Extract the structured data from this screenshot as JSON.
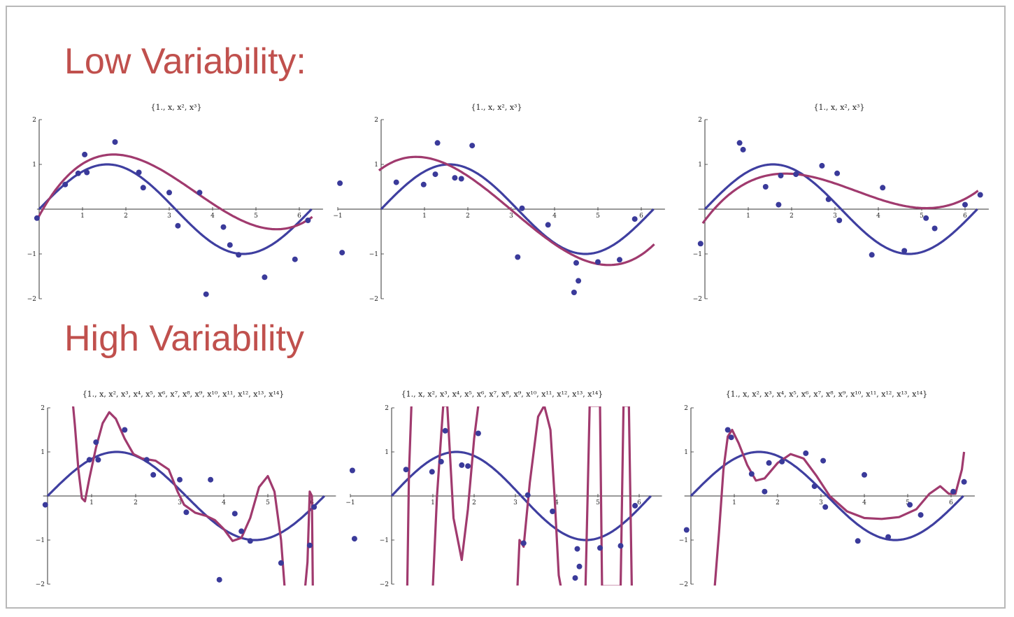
{
  "headings": {
    "low": "Low Variability:",
    "high": "High Variability"
  },
  "colors": {
    "heading": "#c0504d",
    "true_curve": "#3f3fa0",
    "fitted_curve": "#a03a6e",
    "points": "#3a3a9a"
  },
  "chart_data": [
    {
      "type": "scatter",
      "title": "{1., x, x², x³}",
      "xticks": [
        1,
        2,
        3,
        4,
        5,
        6
      ],
      "yticks": [
        -2,
        -1,
        1,
        2
      ],
      "ylim": [
        -2,
        2
      ],
      "points": [
        [
          -0.05,
          -0.2
        ],
        [
          0.6,
          0.55
        ],
        [
          0.9,
          0.8
        ],
        [
          1.05,
          1.22
        ],
        [
          1.1,
          0.82
        ],
        [
          1.75,
          1.5
        ],
        [
          2.3,
          0.82
        ],
        [
          2.4,
          0.48
        ],
        [
          3.0,
          0.37
        ],
        [
          3.2,
          -0.37
        ],
        [
          3.7,
          0.37
        ],
        [
          3.85,
          -1.9
        ],
        [
          4.25,
          -0.4
        ],
        [
          4.4,
          -0.8
        ],
        [
          4.6,
          -1.02
        ],
        [
          5.2,
          -1.52
        ],
        [
          5.9,
          -1.12
        ],
        [
          6.2,
          -0.25
        ]
      ],
      "fit_coeffs": [
        -0.15,
        1.78,
        -0.68,
        0.063
      ]
    },
    {
      "type": "scatter",
      "title": "{1., x, x², x³}",
      "xticks": [
        -1,
        1,
        2,
        3,
        4,
        5,
        6
      ],
      "yticks": [
        -2,
        -1,
        1,
        2
      ],
      "ylim": [
        -2,
        2
      ],
      "points": [
        [
          -0.95,
          0.58
        ],
        [
          -0.9,
          -0.97
        ],
        [
          0.35,
          0.6
        ],
        [
          0.98,
          0.55
        ],
        [
          1.25,
          0.78
        ],
        [
          1.3,
          1.48
        ],
        [
          1.7,
          0.7
        ],
        [
          1.85,
          0.68
        ],
        [
          2.1,
          1.42
        ],
        [
          3.15,
          -1.07
        ],
        [
          3.25,
          0.02
        ],
        [
          3.85,
          -0.35
        ],
        [
          4.45,
          -1.86
        ],
        [
          4.5,
          -1.2
        ],
        [
          4.55,
          -1.6
        ],
        [
          5.0,
          -1.18
        ],
        [
          5.5,
          -1.13
        ],
        [
          5.85,
          -0.22
        ]
      ],
      "fit_coeffs": [
        0.9,
        0.7,
        -0.5,
        0.055
      ]
    },
    {
      "type": "scatter",
      "title": "{1., x, x², x³}",
      "xticks": [
        1,
        2,
        3,
        4,
        5,
        6
      ],
      "yticks": [
        -2,
        -1,
        1,
        2
      ],
      "ylim": [
        -2,
        2
      ],
      "points": [
        [
          -0.1,
          -0.77
        ],
        [
          0.8,
          1.48
        ],
        [
          0.88,
          1.33
        ],
        [
          1.4,
          0.5
        ],
        [
          1.7,
          0.1
        ],
        [
          1.75,
          0.75
        ],
        [
          2.1,
          0.78
        ],
        [
          2.7,
          0.97
        ],
        [
          2.85,
          0.22
        ],
        [
          3.05,
          0.8
        ],
        [
          3.1,
          -0.25
        ],
        [
          3.85,
          -1.02
        ],
        [
          4.1,
          0.48
        ],
        [
          4.6,
          -0.93
        ],
        [
          5.1,
          -0.2
        ],
        [
          5.3,
          -0.43
        ],
        [
          6.0,
          0.1
        ],
        [
          6.35,
          0.32
        ]
      ],
      "fit_coeffs": [
        -0.25,
        1.28,
        -0.47,
        0.045
      ]
    },
    {
      "type": "scatter",
      "title": "{1., x, x², x³, x⁴, x⁵, x⁶, x⁷, x⁸, x⁹, x¹⁰, x¹¹, x¹², x¹³, x¹⁴}",
      "xticks": [
        1,
        2,
        3,
        4,
        5,
        6
      ],
      "yticks": [
        -2,
        -1,
        1,
        2
      ],
      "ylim": [
        -2,
        2
      ],
      "points": [
        [
          -0.05,
          -0.2
        ],
        [
          0.95,
          0.82
        ],
        [
          1.1,
          1.22
        ],
        [
          1.15,
          0.82
        ],
        [
          1.75,
          1.5
        ],
        [
          2.25,
          0.82
        ],
        [
          2.4,
          0.48
        ],
        [
          3.0,
          0.37
        ],
        [
          3.15,
          -0.37
        ],
        [
          3.7,
          0.37
        ],
        [
          3.9,
          -1.9
        ],
        [
          4.25,
          -0.4
        ],
        [
          4.4,
          -0.8
        ],
        [
          4.6,
          -1.02
        ],
        [
          5.3,
          -1.52
        ],
        [
          5.95,
          -1.12
        ],
        [
          6.05,
          -0.25
        ]
      ],
      "fit_path": [
        [
          0.58,
          2.05
        ],
        [
          0.62,
          1.6
        ],
        [
          0.7,
          0.6
        ],
        [
          0.78,
          -0.05
        ],
        [
          0.85,
          -0.12
        ],
        [
          0.95,
          0.4
        ],
        [
          1.1,
          1.1
        ],
        [
          1.25,
          1.65
        ],
        [
          1.4,
          1.9
        ],
        [
          1.55,
          1.75
        ],
        [
          1.75,
          1.3
        ],
        [
          1.95,
          0.95
        ],
        [
          2.15,
          0.85
        ],
        [
          2.45,
          0.8
        ],
        [
          2.75,
          0.6
        ],
        [
          2.95,
          0.1
        ],
        [
          3.1,
          -0.2
        ],
        [
          3.35,
          -0.38
        ],
        [
          3.6,
          -0.45
        ],
        [
          3.8,
          -0.55
        ],
        [
          4.0,
          -0.75
        ],
        [
          4.2,
          -1.02
        ],
        [
          4.4,
          -0.95
        ],
        [
          4.6,
          -0.5
        ],
        [
          4.8,
          0.2
        ],
        [
          5.0,
          0.45
        ],
        [
          5.15,
          0.1
        ],
        [
          5.3,
          -1.0
        ],
        [
          5.38,
          -2.05
        ]
      ],
      "fit_path2": [
        [
          5.85,
          -2.05
        ],
        [
          5.9,
          -1.5
        ],
        [
          5.95,
          0.1
        ],
        [
          6.0,
          0.0
        ],
        [
          6.02,
          -2.05
        ]
      ]
    },
    {
      "type": "scatter",
      "title": "{1., x, x², x³, x⁴, x⁵, x⁶, x⁷, x⁸, x⁹, x¹⁰, x¹¹, x¹², x¹³, x¹⁴}",
      "xticks": [
        -1,
        1,
        2,
        3,
        4,
        5,
        6
      ],
      "yticks": [
        -2,
        -1,
        1,
        2
      ],
      "ylim": [
        -2,
        2
      ],
      "points": [
        [
          -0.95,
          0.58
        ],
        [
          -0.9,
          -0.97
        ],
        [
          0.35,
          0.6
        ],
        [
          0.98,
          0.55
        ],
        [
          1.2,
          0.78
        ],
        [
          1.3,
          1.48
        ],
        [
          1.7,
          0.7
        ],
        [
          1.85,
          0.68
        ],
        [
          2.1,
          1.42
        ],
        [
          3.2,
          -1.07
        ],
        [
          3.3,
          0.02
        ],
        [
          3.9,
          -0.35
        ],
        [
          4.45,
          -1.86
        ],
        [
          4.5,
          -1.2
        ],
        [
          4.55,
          -1.6
        ],
        [
          5.05,
          -1.18
        ],
        [
          5.55,
          -1.13
        ],
        [
          5.9,
          -0.22
        ]
      ],
      "fit_path": [
        [
          0.38,
          -2.05
        ],
        [
          0.42,
          0.5
        ],
        [
          0.48,
          2.05
        ]
      ],
      "fit_path2": [
        [
          1.0,
          -2.05
        ],
        [
          1.1,
          0.0
        ],
        [
          1.25,
          2.05
        ],
        [
          1.35,
          2.05
        ],
        [
          1.5,
          -0.5
        ],
        [
          1.7,
          -1.45
        ],
        [
          1.85,
          -0.3
        ],
        [
          2.0,
          1.3
        ],
        [
          2.1,
          2.05
        ]
      ],
      "fit_path3": [
        [
          3.05,
          -2.05
        ],
        [
          3.1,
          -1.0
        ],
        [
          3.2,
          -1.15
        ],
        [
          3.35,
          0.3
        ],
        [
          3.55,
          1.8
        ],
        [
          3.7,
          2.05
        ],
        [
          3.85,
          1.5
        ],
        [
          3.95,
          0.0
        ],
        [
          4.05,
          -1.8
        ],
        [
          4.1,
          -2.05
        ]
      ],
      "fit_path4": [
        [
          4.7,
          -2.05
        ],
        [
          4.75,
          0.0
        ],
        [
          4.8,
          2.05
        ],
        [
          5.05,
          2.05
        ],
        [
          5.1,
          -2.05
        ],
        [
          5.55,
          -2.05
        ],
        [
          5.62,
          2.05
        ],
        [
          5.75,
          2.05
        ],
        [
          5.82,
          -2.05
        ]
      ]
    },
    {
      "type": "scatter",
      "title": "{1., x, x², x³, x⁴, x⁵, x⁶, x⁷, x⁸, x⁹, x¹⁰, x¹¹, x¹², x¹³, x¹⁴}",
      "xticks": [
        1,
        2,
        3,
        4,
        5,
        6
      ],
      "yticks": [
        -2,
        -1,
        1,
        2
      ],
      "ylim": [
        -2,
        2
      ],
      "points": [
        [
          -0.1,
          -0.77
        ],
        [
          0.85,
          1.5
        ],
        [
          0.93,
          1.33
        ],
        [
          1.4,
          0.5
        ],
        [
          1.7,
          0.1
        ],
        [
          1.8,
          0.75
        ],
        [
          2.1,
          0.78
        ],
        [
          2.65,
          0.97
        ],
        [
          2.85,
          0.22
        ],
        [
          3.05,
          0.8
        ],
        [
          3.1,
          -0.25
        ],
        [
          3.85,
          -1.02
        ],
        [
          4.0,
          0.48
        ],
        [
          4.55,
          -0.93
        ],
        [
          5.05,
          -0.2
        ],
        [
          5.3,
          -0.43
        ],
        [
          6.05,
          0.1
        ],
        [
          6.3,
          0.32
        ]
      ],
      "fit_path": [
        [
          0.55,
          -2.05
        ],
        [
          0.65,
          -0.8
        ],
        [
          0.75,
          0.6
        ],
        [
          0.85,
          1.35
        ],
        [
          0.95,
          1.5
        ],
        [
          1.1,
          1.2
        ],
        [
          1.3,
          0.7
        ],
        [
          1.5,
          0.35
        ],
        [
          1.7,
          0.4
        ],
        [
          2.0,
          0.75
        ],
        [
          2.3,
          0.95
        ],
        [
          2.6,
          0.85
        ],
        [
          2.9,
          0.45
        ],
        [
          3.2,
          0.0
        ],
        [
          3.6,
          -0.35
        ],
        [
          4.0,
          -0.5
        ],
        [
          4.4,
          -0.52
        ],
        [
          4.8,
          -0.48
        ],
        [
          5.2,
          -0.3
        ],
        [
          5.5,
          0.05
        ],
        [
          5.75,
          0.22
        ],
        [
          5.95,
          0.05
        ],
        [
          6.1,
          0.05
        ],
        [
          6.25,
          0.6
        ],
        [
          6.3,
          1.0
        ]
      ]
    }
  ]
}
